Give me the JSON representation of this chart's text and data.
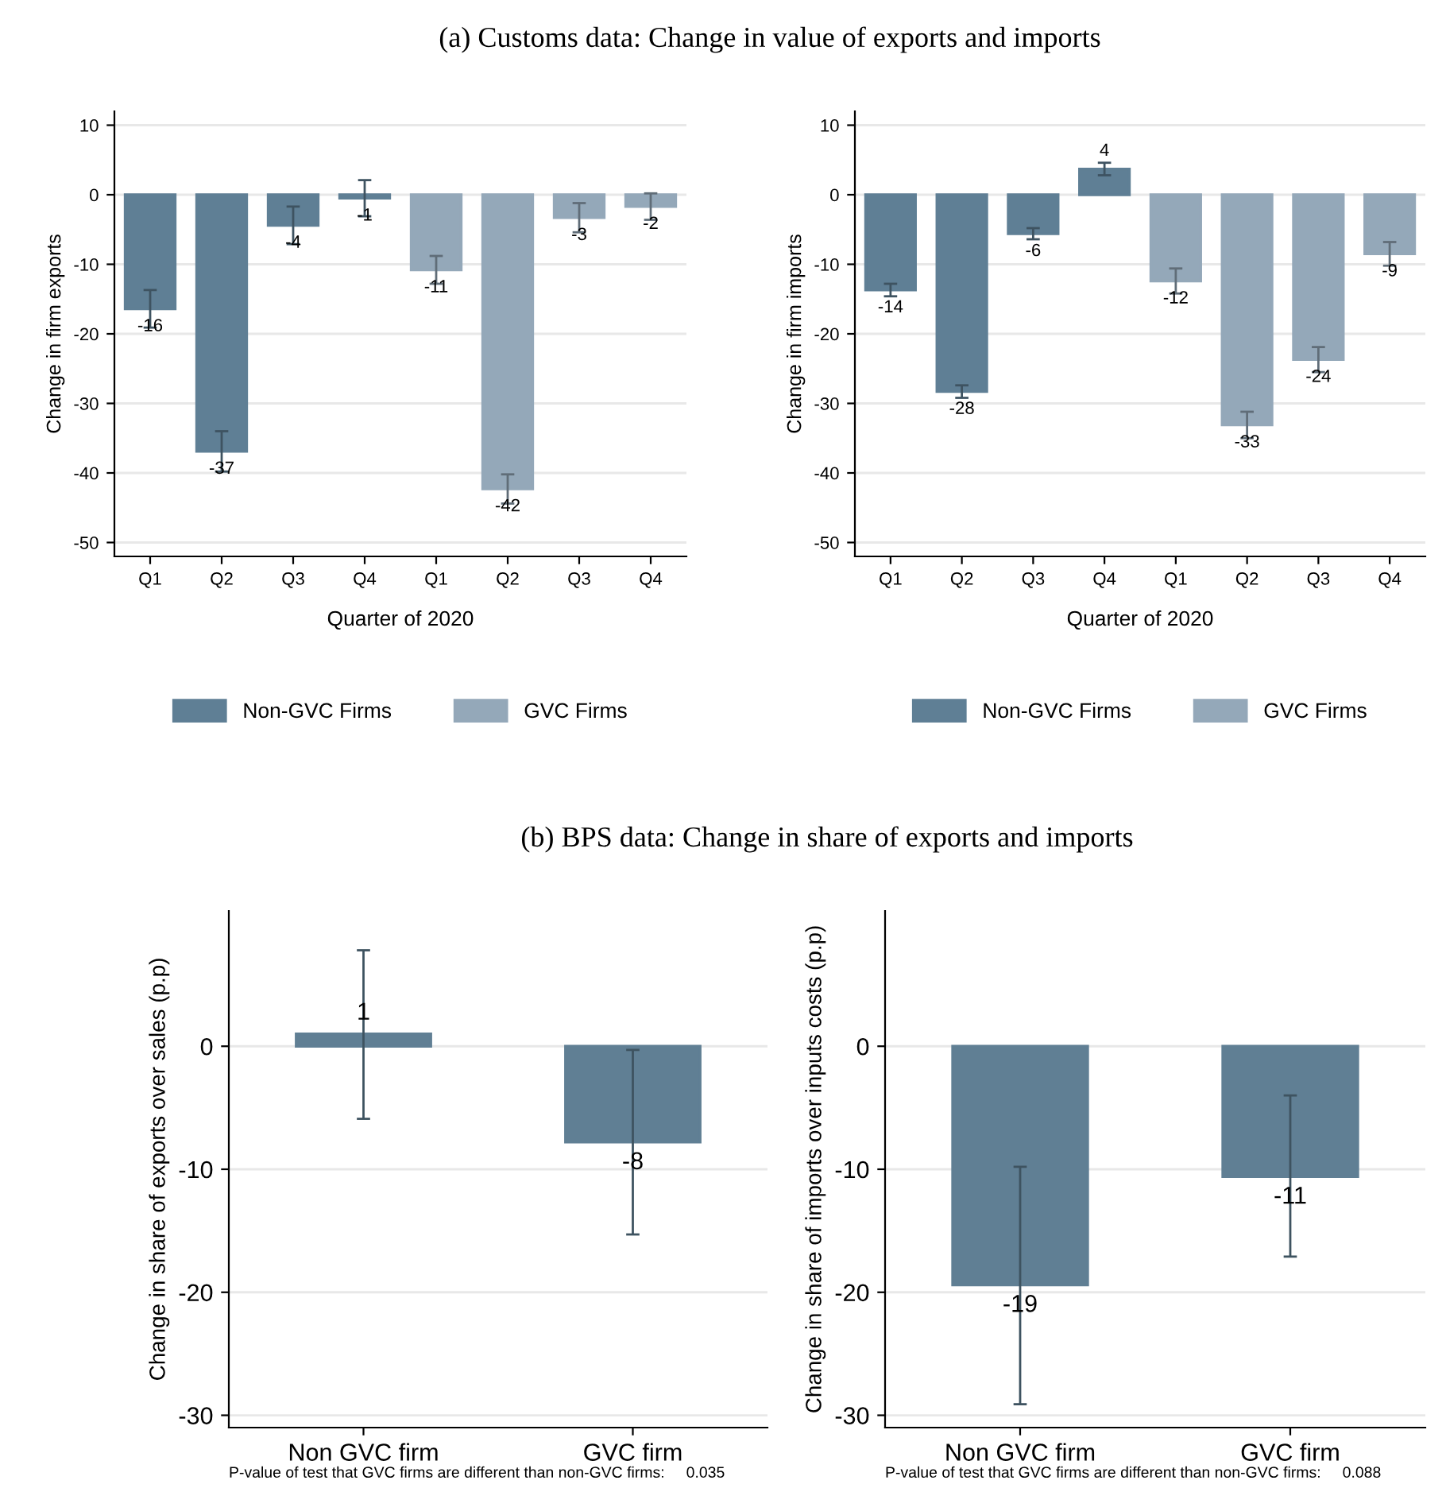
{
  "chart_data": [
    {
      "type": "bar",
      "title": "(a) Customs data: Change in value of exports and imports",
      "xlabel": "Quarter of 2020",
      "ylabel": "Change in firm exports",
      "categories": [
        "Q1",
        "Q2",
        "Q3",
        "Q4",
        "Q1",
        "Q2",
        "Q3",
        "Q4"
      ],
      "ylim": [
        -52,
        12
      ],
      "yticks": [
        10,
        0,
        -10,
        -20,
        -30,
        -40,
        -50
      ],
      "grid": "y",
      "legend": "bottom",
      "series": [
        {
          "name": "Non-GVC Firms",
          "color": "#5f7f95",
          "values": [
            -16.4,
            -36.9,
            -4.4,
            -0.5,
            null,
            null,
            null,
            null
          ],
          "errors": [
            2.7,
            2.9,
            2.7,
            2.6,
            null,
            null,
            null,
            null
          ],
          "value_labels": [
            "-16",
            "-37",
            "-4",
            "-1",
            null,
            null,
            null,
            null
          ]
        },
        {
          "name": "GVC Firms",
          "color": "#94a8b9",
          "values": [
            null,
            null,
            null,
            null,
            -10.8,
            -42.3,
            -3.3,
            -1.7
          ],
          "errors": [
            null,
            null,
            null,
            null,
            2.0,
            2.1,
            2.1,
            1.9
          ],
          "value_labels": [
            null,
            null,
            null,
            null,
            "-11",
            "-42",
            "-3",
            "-2"
          ]
        }
      ]
    },
    {
      "type": "bar",
      "xlabel": "Quarter of 2020",
      "ylabel": "Change in firm imports",
      "categories": [
        "Q1",
        "Q2",
        "Q3",
        "Q4",
        "Q1",
        "Q2",
        "Q3",
        "Q4"
      ],
      "ylim": [
        -52,
        12
      ],
      "yticks": [
        10,
        0,
        -10,
        -20,
        -30,
        -40,
        -50
      ],
      "grid": "y",
      "legend": "bottom",
      "series": [
        {
          "name": "Non-GVC Firms",
          "color": "#5f7f95",
          "values": [
            -13.7,
            -28.3,
            -5.6,
            3.7,
            null,
            null,
            null,
            null
          ],
          "errors": [
            0.9,
            0.9,
            0.8,
            0.9,
            null,
            null,
            null,
            null
          ],
          "value_labels": [
            "-14",
            "-28",
            "-6",
            "4",
            null,
            null,
            null,
            null
          ]
        },
        {
          "name": "GVC Firms",
          "color": "#94a8b9",
          "values": [
            null,
            null,
            null,
            null,
            -12.4,
            -33.1,
            -23.7,
            -8.5
          ],
          "errors": [
            null,
            null,
            null,
            null,
            1.8,
            1.9,
            1.8,
            1.7
          ],
          "value_labels": [
            null,
            null,
            null,
            null,
            "-12",
            "-33",
            "-24",
            "-9"
          ]
        }
      ]
    },
    {
      "type": "bar",
      "title": "(b) BPS data: Change in share of exports and imports",
      "ylabel": "Change in share of exports over sales (p.p)",
      "categories": [
        "Non GVC firm",
        "GVC firm"
      ],
      "ylim": [
        -31,
        11
      ],
      "yticks": [
        0,
        -10,
        -20,
        -30
      ],
      "grid": "y",
      "annotations": [
        "P-value of test that GVC firms are different than non-GVC firms:     0.035"
      ],
      "series": [
        {
          "color": "#607f94",
          "values": [
            1.0,
            -7.8
          ],
          "errors": [
            [
              -5.9,
              7.8
            ],
            [
              -15.3,
              -0.3
            ]
          ],
          "value_labels": [
            "1",
            "-8"
          ]
        }
      ]
    },
    {
      "type": "bar",
      "ylabel": "Change in share of imports over inputs costs (p.p)",
      "categories": [
        "Non GVC firm",
        "GVC firm"
      ],
      "ylim": [
        -31,
        11
      ],
      "yticks": [
        0,
        -10,
        -20,
        -30
      ],
      "grid": "y",
      "annotations": [
        "P-value of test that GVC firms are different than non-GVC firms:     0.088"
      ],
      "series": [
        {
          "color": "#607f94",
          "values": [
            -19.4,
            -10.6
          ],
          "errors": [
            [
              -29.1,
              -9.8
            ],
            [
              -17.1,
              -4.0
            ]
          ],
          "value_labels": [
            "-19",
            "-11"
          ]
        }
      ]
    }
  ]
}
